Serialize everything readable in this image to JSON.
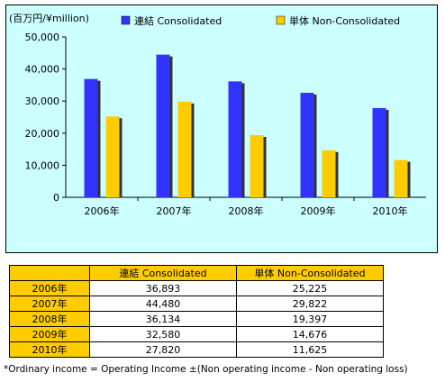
{
  "chart_data": {
    "type": "bar",
    "unit_label": "(百万円/¥million)",
    "categories": [
      "2006年",
      "2007年",
      "2008年",
      "2009年",
      "2010年"
    ],
    "series": [
      {
        "name": "連結 Consolidated",
        "color": "#3333ff",
        "values": [
          36893,
          44480,
          36134,
          32580,
          27820
        ]
      },
      {
        "name": "単体 Non-Consolidated",
        "color": "#ffcc00",
        "values": [
          25225,
          29822,
          19397,
          14676,
          11625
        ]
      }
    ],
    "yticks": [
      "0",
      "10,000",
      "20,000",
      "30,000",
      "40,000",
      "50,000"
    ],
    "ylim": [
      0,
      50000
    ],
    "legend_position": "top",
    "grid": false
  },
  "table": {
    "headers": [
      "連結 Consolidated",
      "単体 Non-Consolidated"
    ],
    "rows": [
      {
        "year": "2006年",
        "consolidated": "36,893",
        "non_consolidated": "25,225"
      },
      {
        "year": "2007年",
        "consolidated": "44,480",
        "non_consolidated": "29,822"
      },
      {
        "year": "2008年",
        "consolidated": "36,134",
        "non_consolidated": "19,397"
      },
      {
        "year": "2009年",
        "consolidated": "32,580",
        "non_consolidated": "14,676"
      },
      {
        "year": "2010年",
        "consolidated": "27,820",
        "non_consolidated": "11,625"
      }
    ]
  },
  "footnote": "*Ordinary income = Operating Income ±(Non operating income - Non operating loss)"
}
